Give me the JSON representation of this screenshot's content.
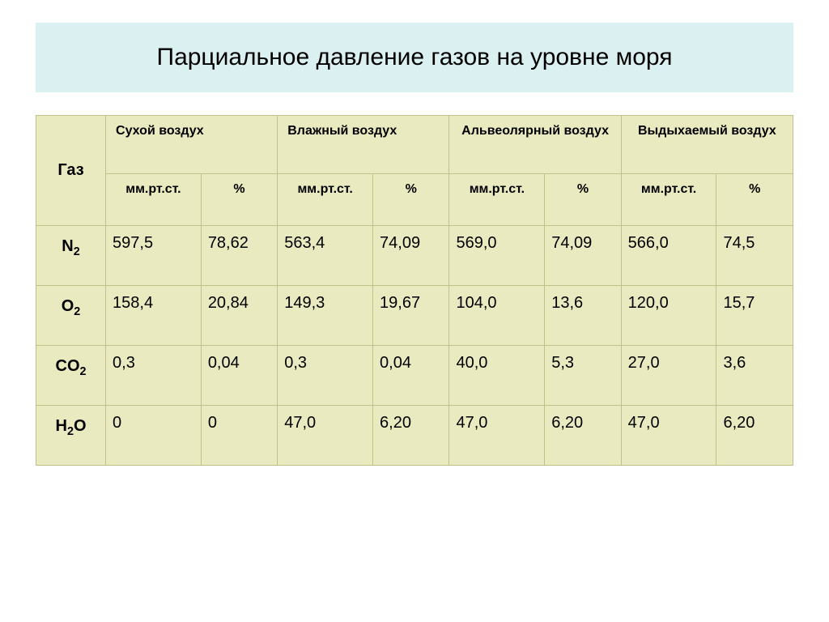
{
  "title": "Парциальное давление газов на уровне моря",
  "table": {
    "gas_header": "Газ",
    "group_headers": [
      "Сухой воздух",
      "Влажный воздух",
      "Альвеолярный воздух",
      "Выдыхаемый воздух"
    ],
    "sub_headers": {
      "mm": "мм.рт.ст.",
      "pct": "%"
    },
    "rows": [
      {
        "label_base": "N",
        "label_sub": "2",
        "cells": [
          "597,5",
          "78,62",
          "563,4",
          "74,09",
          "569,0",
          "74,09",
          "566,0",
          "74,5"
        ]
      },
      {
        "label_base": "O",
        "label_sub": "2",
        "cells": [
          "158,4",
          "20,84",
          "149,3",
          "19,67",
          "104,0",
          "13,6",
          "120,0",
          "15,7"
        ]
      },
      {
        "label_base": "CO",
        "label_sub": "2",
        "cells": [
          "0,3",
          "0,04",
          "0,3",
          "0,04",
          "40,0",
          "5,3",
          "27,0",
          "3,6"
        ]
      },
      {
        "label_base": "H",
        "label_sub": "2",
        "label_tail": "O",
        "cells": [
          "0",
          "0",
          "47,0",
          "6,20",
          "47,0",
          "6,20",
          "47,0",
          "6,20"
        ]
      }
    ]
  },
  "style": {
    "title_bg": "#dbf0f1",
    "cell_bg": "#e9eac0",
    "border_color": "#c0c28a",
    "title_fontsize": 30,
    "header_fontsize": 16,
    "body_fontsize": 20
  }
}
